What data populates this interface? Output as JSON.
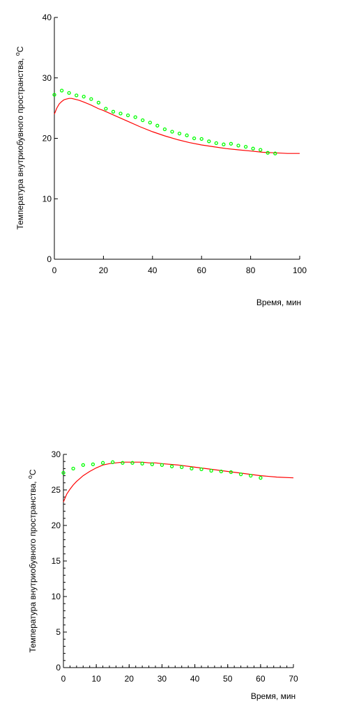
{
  "chart_data": [
    {
      "type": "scatter",
      "xlabel": "Время, мин",
      "ylabel": "Температура внутриобувного пространства, ",
      "ylabel_unit": "oC",
      "xlim": [
        0,
        100
      ],
      "ylim": [
        0,
        40
      ],
      "xticks": [
        0,
        20,
        40,
        60,
        80,
        100
      ],
      "yticks": [
        0,
        10,
        20,
        30,
        40
      ],
      "grid": false,
      "series": [
        {
          "kind": "line",
          "color": "#ff0000",
          "x": [
            0,
            1,
            2,
            3,
            4,
            5,
            6,
            7,
            8,
            10,
            12,
            15,
            18,
            20,
            25,
            30,
            35,
            40,
            45,
            50,
            55,
            60,
            65,
            70,
            75,
            80,
            85,
            90,
            95,
            100
          ],
          "y": [
            24.0,
            25.0,
            25.7,
            26.1,
            26.4,
            26.5,
            26.6,
            26.6,
            26.5,
            26.3,
            26.0,
            25.5,
            24.9,
            24.6,
            23.7,
            22.8,
            21.9,
            21.1,
            20.4,
            19.8,
            19.3,
            18.9,
            18.6,
            18.3,
            18.1,
            17.9,
            17.7,
            17.6,
            17.5,
            17.5
          ]
        },
        {
          "kind": "scatter",
          "color": "#00ff00",
          "x": [
            0,
            3,
            6,
            9,
            12,
            15,
            18,
            21,
            24,
            27,
            30,
            33,
            36,
            39,
            42,
            45,
            48,
            51,
            54,
            57,
            60,
            63,
            66,
            69,
            72,
            75,
            78,
            81,
            84,
            87,
            90
          ],
          "y": [
            27.2,
            27.9,
            27.5,
            27.1,
            26.9,
            26.5,
            25.9,
            24.9,
            24.4,
            24.1,
            23.8,
            23.5,
            23.0,
            22.6,
            22.1,
            21.5,
            21.1,
            20.8,
            20.5,
            20.0,
            19.9,
            19.5,
            19.2,
            19.0,
            19.1,
            18.8,
            18.6,
            18.3,
            18.1,
            17.6,
            17.5
          ]
        }
      ]
    },
    {
      "type": "scatter",
      "xlabel": "Время, мин",
      "ylabel": "Температура внутриобувного пространства, ",
      "ylabel_unit": "oC",
      "xlim": [
        0,
        70
      ],
      "ylim": [
        0,
        30
      ],
      "xticks": [
        0,
        10,
        20,
        30,
        40,
        50,
        60,
        70
      ],
      "yticks": [
        0,
        5,
        10,
        15,
        20,
        25,
        30
      ],
      "grid": false,
      "series": [
        {
          "kind": "line",
          "color": "#ff0000",
          "x": [
            0,
            1,
            2,
            3,
            4,
            5,
            6,
            8,
            10,
            12,
            14,
            16,
            18,
            20,
            22,
            24,
            26,
            28,
            30,
            35,
            40,
            45,
            50,
            55,
            60,
            65,
            70
          ],
          "y": [
            23.3,
            24.4,
            25.1,
            25.7,
            26.2,
            26.6,
            27.0,
            27.6,
            28.1,
            28.5,
            28.7,
            28.8,
            28.9,
            28.9,
            28.9,
            28.9,
            28.8,
            28.8,
            28.7,
            28.5,
            28.2,
            27.9,
            27.6,
            27.3,
            27.0,
            26.8,
            26.7
          ]
        },
        {
          "kind": "scatter",
          "color": "#00ff00",
          "x": [
            0,
            3,
            6,
            9,
            12,
            15,
            18,
            21,
            24,
            27,
            30,
            33,
            36,
            39,
            42,
            45,
            48,
            51,
            54,
            57,
            60
          ],
          "y": [
            27.4,
            28.0,
            28.5,
            28.6,
            28.8,
            28.9,
            28.8,
            28.8,
            28.7,
            28.6,
            28.5,
            28.3,
            28.2,
            28.0,
            27.9,
            27.7,
            27.6,
            27.5,
            27.2,
            27.0,
            26.7
          ]
        }
      ]
    }
  ]
}
